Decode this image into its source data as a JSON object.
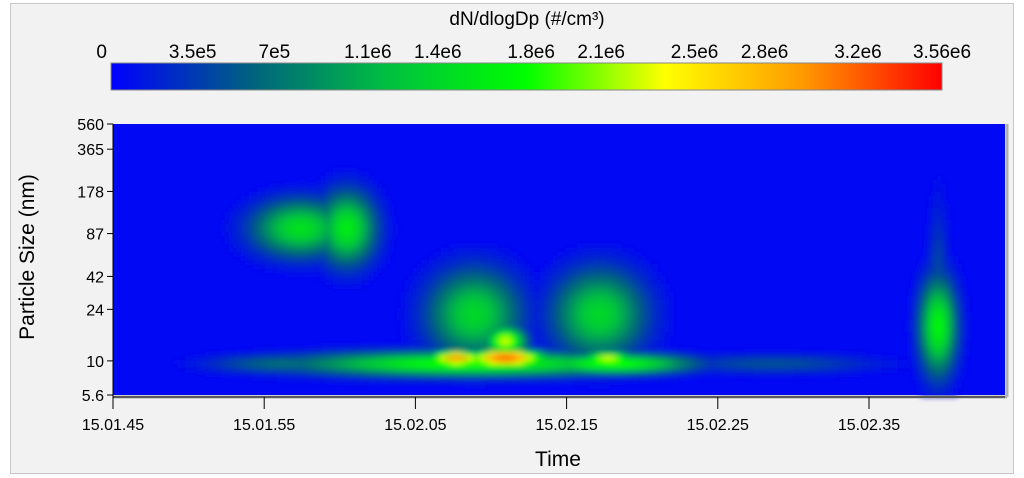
{
  "chart_data": {
    "type": "heatmap",
    "colorbar": {
      "title": "dN/dlogDp (#/cm³)",
      "ticks": [
        {
          "label": "0",
          "value": 0
        },
        {
          "label": "3.5e5",
          "value": 350000
        },
        {
          "label": "7e5",
          "value": 700000
        },
        {
          "label": "1.1e6",
          "value": 1100000
        },
        {
          "label": "1.4e6",
          "value": 1400000
        },
        {
          "label": "1.8e6",
          "value": 1800000
        },
        {
          "label": "2.1e6",
          "value": 2100000
        },
        {
          "label": "2.5e6",
          "value": 2500000
        },
        {
          "label": "2.8e6",
          "value": 2800000
        },
        {
          "label": "3.2e6",
          "value": 3200000
        },
        {
          "label": "3.56e6",
          "value": 3560000
        }
      ],
      "range": [
        0,
        3560000
      ],
      "colors": [
        "#0000ff",
        "#006080",
        "#00c040",
        "#00ff00",
        "#ffff00",
        "#ff9900",
        "#ff0000"
      ]
    },
    "xlabel": "Time",
    "ylabel": "Particle Size (nm)",
    "y_scale": "log",
    "ylim": [
      5.6,
      560
    ],
    "x_ticks": [
      "15.01.45",
      "15.01.55",
      "15.02.05",
      "15.02.15",
      "15.02.25",
      "15.02.35"
    ],
    "y_ticks": [
      "560",
      "365",
      "178",
      "87",
      "42",
      "24",
      "10",
      "5.6"
    ],
    "background_value": 50000,
    "blobs": [
      {
        "t": 0.21,
        "dp": 95,
        "dt": 0.036,
        "ddec": 0.14,
        "value": 1500000
      },
      {
        "t": 0.262,
        "dp": 95,
        "dt": 0.022,
        "ddec": 0.18,
        "value": 1600000
      },
      {
        "t": 0.195,
        "dp": 9.5,
        "dt": 0.06,
        "ddec": 0.05,
        "value": 700000
      },
      {
        "t": 0.355,
        "dp": 9.5,
        "dt": 0.04,
        "ddec": 0.05,
        "value": 600000
      },
      {
        "t": 0.4,
        "dp": 9.5,
        "dt": 0.13,
        "ddec": 0.06,
        "value": 1900000
      },
      {
        "t": 0.405,
        "dp": 22,
        "dt": 0.035,
        "ddec": 0.22,
        "value": 1400000
      },
      {
        "t": 0.385,
        "dp": 10.5,
        "dt": 0.02,
        "ddec": 0.035,
        "value": 3300000
      },
      {
        "t": 0.44,
        "dp": 10.5,
        "dt": 0.03,
        "ddec": 0.04,
        "value": 3560000
      },
      {
        "t": 0.44,
        "dp": 14,
        "dt": 0.015,
        "ddec": 0.07,
        "value": 2300000
      },
      {
        "t": 0.56,
        "dp": 9.5,
        "dt": 0.06,
        "ddec": 0.05,
        "value": 1900000
      },
      {
        "t": 0.545,
        "dp": 22,
        "dt": 0.035,
        "ddec": 0.22,
        "value": 1400000
      },
      {
        "t": 0.555,
        "dp": 10.5,
        "dt": 0.02,
        "ddec": 0.03,
        "value": 2300000
      },
      {
        "t": 0.74,
        "dp": 9.5,
        "dt": 0.08,
        "ddec": 0.05,
        "value": 500000
      },
      {
        "t": 0.925,
        "dp": 18,
        "dt": 0.014,
        "ddec": 0.24,
        "value": 1700000
      },
      {
        "t": 0.925,
        "dp": 30,
        "dt": 0.008,
        "ddec": 0.45,
        "value": 500000
      }
    ]
  }
}
